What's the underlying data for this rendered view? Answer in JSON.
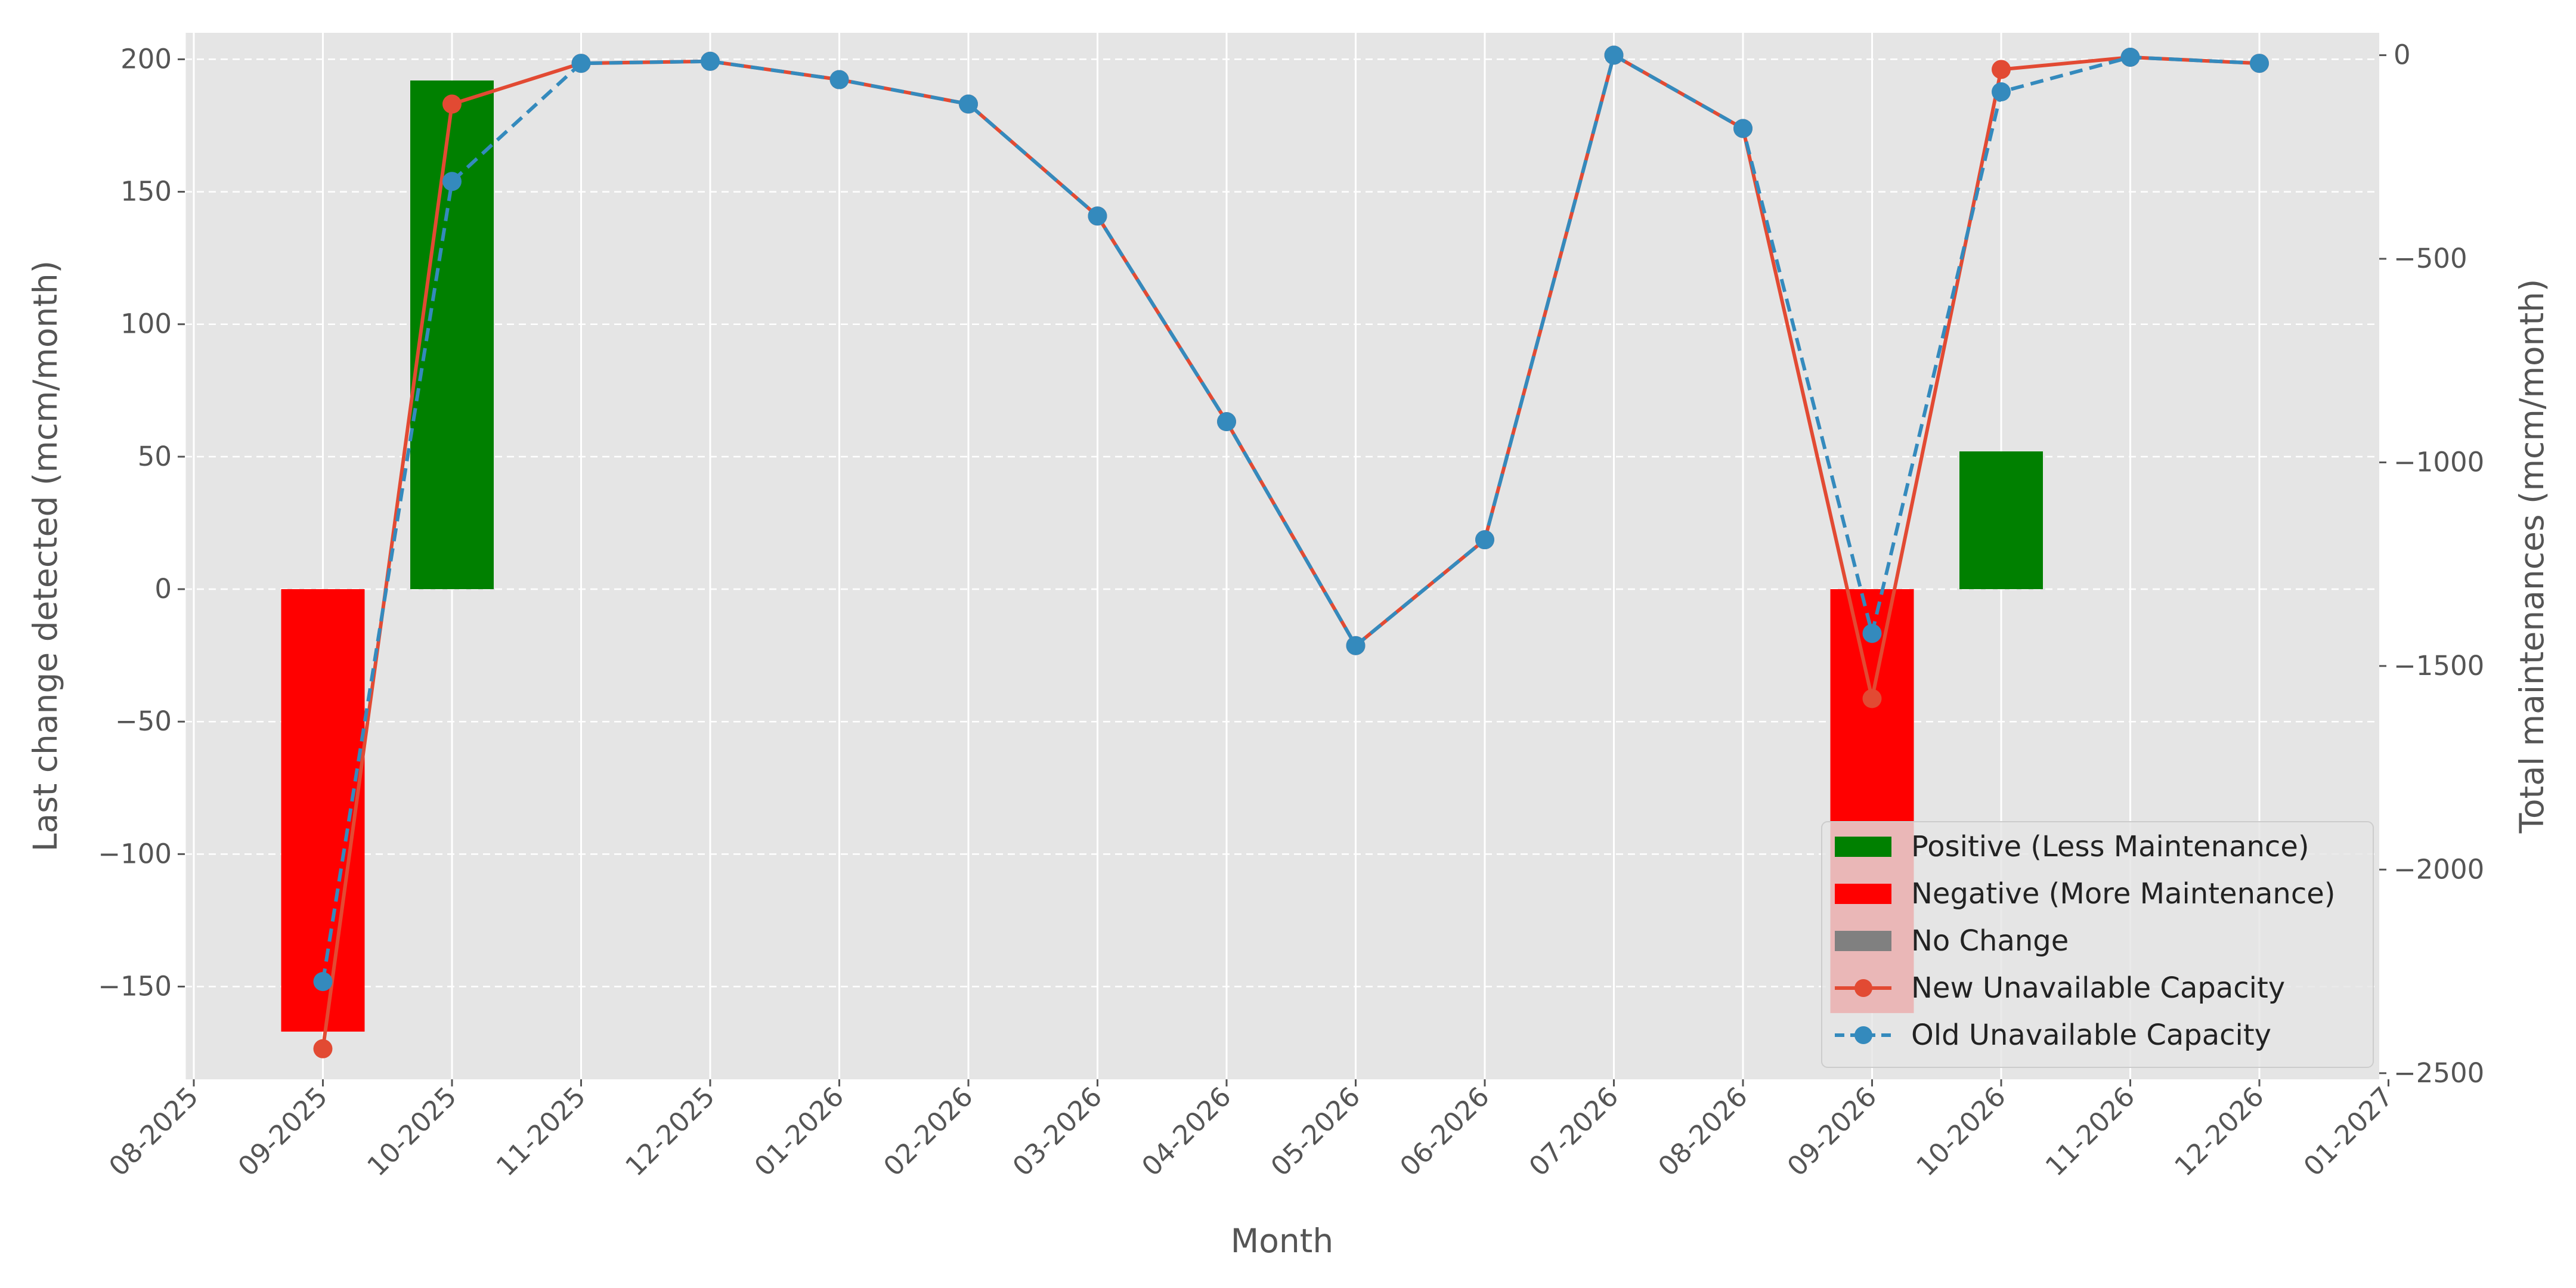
{
  "chart_data": {
    "type": "bar+line",
    "title": "",
    "xlabel": "Month",
    "ylabel": "Last change detected (mcm/month)",
    "y2label": "Total maintenances (mcm/month)",
    "ylim": [
      -185,
      210
    ],
    "y2lim": [
      -2515,
      55
    ],
    "yticks": [
      200,
      150,
      100,
      50,
      0,
      -50,
      -100,
      -150
    ],
    "y2ticks": [
      0,
      -500,
      -1000,
      -1500,
      -2000,
      -2500
    ],
    "x_ticks": [
      "08-2025",
      "09-2025",
      "10-2025",
      "11-2025",
      "12-2025",
      "01-2026",
      "02-2026",
      "03-2026",
      "04-2026",
      "05-2026",
      "06-2026",
      "07-2026",
      "08-2026",
      "09-2026",
      "10-2026",
      "11-2026",
      "12-2026",
      "01-2027"
    ],
    "grid": true,
    "legend_position": "lower right",
    "colors": {
      "positive": "#008000",
      "negative": "#ff0000",
      "no_change": "#808080",
      "new_line": "#e24a33",
      "old_line": "#348abd",
      "plot_bg": "#e5e5e5"
    },
    "bars": [
      {
        "month": "09-2025",
        "value": -167
      },
      {
        "month": "10-2025",
        "value": 192
      },
      {
        "month": "09-2026",
        "value": -160
      },
      {
        "month": "10-2026",
        "value": 52
      }
    ],
    "series": [
      {
        "name": "New Unavailable Capacity",
        "style": "solid",
        "axis": "right",
        "points": [
          {
            "month": "09-2025",
            "value": -2440
          },
          {
            "month": "10-2025",
            "value": -120
          },
          {
            "month": "11-2025",
            "value": -20
          },
          {
            "month": "12-2025",
            "value": -15
          },
          {
            "month": "01-2026",
            "value": -60
          },
          {
            "month": "02-2026",
            "value": -120
          },
          {
            "month": "03-2026",
            "value": -395
          },
          {
            "month": "04-2026",
            "value": -900
          },
          {
            "month": "05-2026",
            "value": -1450
          },
          {
            "month": "06-2026",
            "value": -1190
          },
          {
            "month": "07-2026",
            "value": 0
          },
          {
            "month": "08-2026",
            "value": -180
          },
          {
            "month": "09-2026",
            "value": -1580
          },
          {
            "month": "10-2026",
            "value": -35
          },
          {
            "month": "11-2026",
            "value": -5
          },
          {
            "month": "12-2026",
            "value": -20
          }
        ]
      },
      {
        "name": "Old Unavailable Capacity",
        "style": "dashed",
        "axis": "right",
        "points": [
          {
            "month": "09-2025",
            "value": -2275
          },
          {
            "month": "10-2025",
            "value": -310
          },
          {
            "month": "11-2025",
            "value": -20
          },
          {
            "month": "12-2025",
            "value": -15
          },
          {
            "month": "01-2026",
            "value": -60
          },
          {
            "month": "02-2026",
            "value": -120
          },
          {
            "month": "03-2026",
            "value": -395
          },
          {
            "month": "04-2026",
            "value": -900
          },
          {
            "month": "05-2026",
            "value": -1450
          },
          {
            "month": "06-2026",
            "value": -1190
          },
          {
            "month": "07-2026",
            "value": 0
          },
          {
            "month": "08-2026",
            "value": -180
          },
          {
            "month": "09-2026",
            "value": -1420
          },
          {
            "month": "10-2026",
            "value": -90
          },
          {
            "month": "11-2026",
            "value": -5
          },
          {
            "month": "12-2026",
            "value": -20
          }
        ]
      }
    ],
    "legend": [
      {
        "label": "Positive (Less Maintenance)",
        "kind": "bar",
        "color_key": "positive"
      },
      {
        "label": "Negative (More Maintenance)",
        "kind": "bar",
        "color_key": "negative"
      },
      {
        "label": "No Change",
        "kind": "bar",
        "color_key": "no_change"
      },
      {
        "label": "New Unavailable Capacity",
        "kind": "line",
        "color_key": "new_line",
        "style": "solid"
      },
      {
        "label": "Old Unavailable Capacity",
        "kind": "line",
        "color_key": "old_line",
        "style": "dashed"
      }
    ]
  }
}
